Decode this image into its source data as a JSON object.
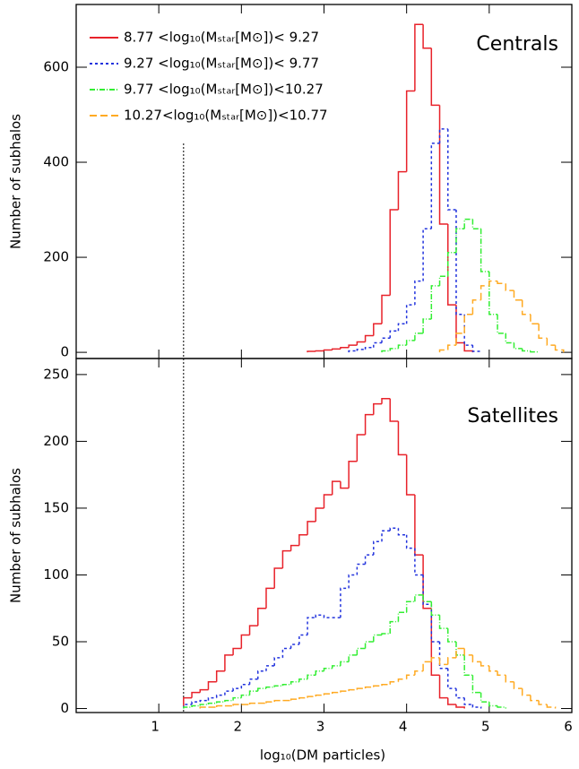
{
  "chart_data": [
    {
      "type": "histogram",
      "annotation": "Centrals",
      "ylabel": "Number of subhalos",
      "xlim": [
        0,
        6
      ],
      "ylim": [
        -13,
        732
      ],
      "xticks": [
        1,
        2,
        3,
        4,
        5,
        6
      ],
      "yticks": [
        0,
        200,
        400,
        600
      ],
      "vline": 1.3,
      "series": [
        {
          "name": "8.77 <log₁₀(Mₛₜₐᵣ[M⊙])< 9.27",
          "color": "#e8222a",
          "dash": "none",
          "bins": [
            2.8,
            2.9,
            3.0,
            3.1,
            3.2,
            3.3,
            3.4,
            3.5,
            3.6,
            3.7,
            3.8,
            3.9,
            4.0,
            4.1,
            4.2,
            4.3,
            4.4,
            4.5,
            4.6,
            4.7,
            4.8
          ],
          "values": [
            2,
            3,
            5,
            7,
            10,
            15,
            22,
            35,
            60,
            120,
            300,
            380,
            550,
            690,
            640,
            520,
            270,
            100,
            20,
            3
          ]
        },
        {
          "name": "9.27 <log₁₀(Mₛₜₐᵣ[M⊙])< 9.77",
          "color": "#2233dd",
          "dash": "3,3",
          "bins": [
            3.3,
            3.4,
            3.5,
            3.6,
            3.7,
            3.8,
            3.9,
            4.0,
            4.1,
            4.2,
            4.3,
            4.4,
            4.5,
            4.6,
            4.7,
            4.8,
            4.9
          ],
          "values": [
            3,
            6,
            10,
            20,
            30,
            45,
            60,
            100,
            150,
            260,
            440,
            470,
            300,
            80,
            15,
            2
          ]
        },
        {
          "name": "9.77 <log₁₀(Mₛₜₐᵣ[M⊙])<10.27",
          "color": "#33ee33",
          "dash": "6,2,1,2",
          "bins": [
            3.7,
            3.8,
            3.9,
            4.0,
            4.1,
            4.2,
            4.3,
            4.4,
            4.5,
            4.6,
            4.7,
            4.8,
            4.9,
            5.0,
            5.1,
            5.2,
            5.3,
            5.4,
            5.5,
            5.6
          ],
          "values": [
            3,
            8,
            15,
            25,
            40,
            70,
            140,
            160,
            210,
            260,
            280,
            260,
            170,
            80,
            40,
            20,
            8,
            3,
            1
          ]
        },
        {
          "name": "10.27<log₁₀(Mₛₜₐᵣ[M⊙])<10.77",
          "color": "#ffaa22",
          "dash": "8,4",
          "bins": [
            4.4,
            4.5,
            4.6,
            4.7,
            4.8,
            4.9,
            5.0,
            5.1,
            5.2,
            5.3,
            5.4,
            5.5,
            5.6,
            5.7,
            5.8,
            5.9
          ],
          "values": [
            5,
            15,
            40,
            80,
            110,
            140,
            150,
            145,
            130,
            110,
            80,
            60,
            30,
            15,
            5
          ]
        }
      ]
    },
    {
      "type": "histogram",
      "annotation": "Satellites",
      "ylabel": "Number of subhalos",
      "xlabel": "log₁₀(DM particles)",
      "xlim": [
        0,
        6
      ],
      "ylim": [
        -3,
        262
      ],
      "xticks": [
        1,
        2,
        3,
        4,
        5,
        6
      ],
      "yticks": [
        0,
        50,
        100,
        150,
        200,
        250
      ],
      "vline": 1.3,
      "series": [
        {
          "color": "#e8222a",
          "dash": "none",
          "bins": [
            1.3,
            1.4,
            1.5,
            1.6,
            1.7,
            1.8,
            1.9,
            2.0,
            2.1,
            2.2,
            2.3,
            2.4,
            2.5,
            2.6,
            2.7,
            2.8,
            2.9,
            3.0,
            3.1,
            3.2,
            3.3,
            3.4,
            3.5,
            3.6,
            3.7,
            3.8,
            3.9,
            4.0,
            4.1,
            4.2,
            4.3,
            4.4,
            4.5,
            4.6,
            4.7
          ],
          "values": [
            8,
            12,
            14,
            20,
            28,
            40,
            45,
            55,
            62,
            75,
            90,
            105,
            118,
            122,
            130,
            140,
            150,
            160,
            170,
            165,
            185,
            205,
            220,
            228,
            232,
            215,
            190,
            160,
            115,
            75,
            25,
            8,
            3,
            1
          ]
        },
        {
          "color": "#2233dd",
          "dash": "3,3",
          "bins": [
            1.3,
            1.4,
            1.5,
            1.6,
            1.7,
            1.8,
            1.9,
            2.0,
            2.1,
            2.2,
            2.3,
            2.4,
            2.5,
            2.6,
            2.7,
            2.8,
            2.9,
            3.0,
            3.1,
            3.2,
            3.3,
            3.4,
            3.5,
            3.6,
            3.7,
            3.8,
            3.9,
            4.0,
            4.1,
            4.2,
            4.3,
            4.4,
            4.5,
            4.6,
            4.7,
            4.8,
            4.9
          ],
          "values": [
            3,
            5,
            6,
            8,
            10,
            13,
            15,
            18,
            22,
            28,
            32,
            38,
            45,
            48,
            55,
            68,
            70,
            68,
            68,
            90,
            100,
            108,
            115,
            125,
            133,
            135,
            130,
            120,
            100,
            78,
            50,
            30,
            15,
            8,
            3,
            1
          ]
        },
        {
          "color": "#33ee33",
          "dash": "6,2,1,2",
          "bins": [
            1.3,
            1.4,
            1.5,
            1.6,
            1.7,
            1.8,
            1.9,
            2.0,
            2.1,
            2.2,
            2.3,
            2.4,
            2.5,
            2.6,
            2.7,
            2.8,
            2.9,
            3.0,
            3.1,
            3.2,
            3.3,
            3.4,
            3.5,
            3.6,
            3.7,
            3.8,
            3.9,
            4.0,
            4.1,
            4.2,
            4.3,
            4.4,
            4.5,
            4.6,
            4.7,
            4.8,
            4.9,
            5.0,
            5.1,
            5.2
          ],
          "values": [
            1,
            2,
            3,
            4,
            5,
            6,
            8,
            10,
            13,
            15,
            16,
            17,
            18,
            20,
            22,
            25,
            28,
            30,
            32,
            35,
            40,
            45,
            50,
            55,
            56,
            65,
            72,
            80,
            85,
            80,
            70,
            60,
            50,
            40,
            25,
            12,
            5,
            2,
            1
          ]
        },
        {
          "color": "#ffaa22",
          "dash": "8,4",
          "bins": [
            1.5,
            1.6,
            1.7,
            1.8,
            1.9,
            2.0,
            2.1,
            2.2,
            2.3,
            2.4,
            2.5,
            2.6,
            2.7,
            2.8,
            2.9,
            3.0,
            3.1,
            3.2,
            3.3,
            3.4,
            3.5,
            3.6,
            3.7,
            3.8,
            3.9,
            4.0,
            4.1,
            4.2,
            4.3,
            4.4,
            4.5,
            4.6,
            4.7,
            4.8,
            4.9,
            5.0,
            5.1,
            5.2,
            5.3,
            5.4,
            5.5,
            5.6,
            5.7,
            5.8
          ],
          "values": [
            1,
            1,
            2,
            2,
            3,
            3,
            4,
            4,
            5,
            6,
            6,
            7,
            8,
            9,
            10,
            11,
            12,
            13,
            14,
            15,
            16,
            17,
            18,
            20,
            22,
            25,
            28,
            35,
            38,
            33,
            38,
            45,
            40,
            35,
            32,
            28,
            25,
            20,
            15,
            10,
            6,
            3,
            1
          ]
        }
      ]
    }
  ]
}
